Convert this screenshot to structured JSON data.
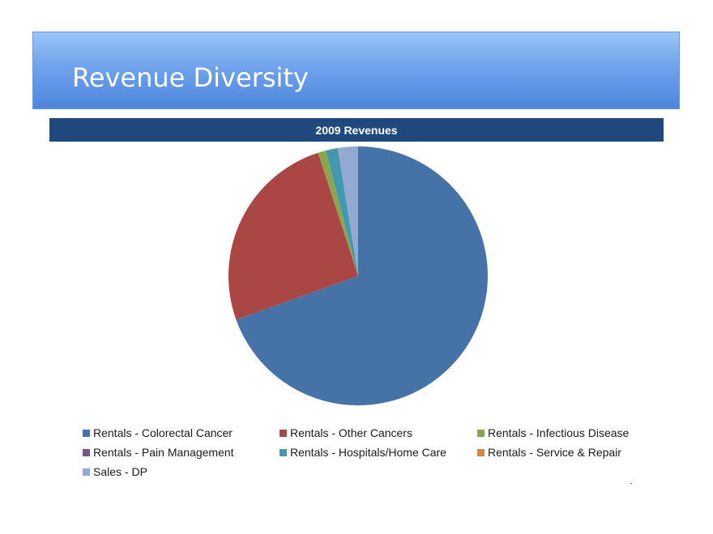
{
  "slide": {
    "title": "Revenue Diversity"
  },
  "chart_data": {
    "type": "pie",
    "title": "2009 Revenues",
    "categories": [
      "Rentals - Colorectal Cancer",
      "Rentals - Other Cancers",
      "Rentals - Infectious Disease",
      "Rentals - Pain Management",
      "Rentals - Hospitals/Home Care",
      "Rentals - Service & Repair",
      "Sales - DP"
    ],
    "values": [
      69.5,
      25.5,
      1.0,
      0.0,
      1.5,
      0.0,
      2.5
    ],
    "colors": [
      "#4572a7",
      "#aa4643",
      "#89a54e",
      "#71588f",
      "#4198af",
      "#db843d",
      "#93a9cf"
    ],
    "legend_position": "bottom"
  }
}
